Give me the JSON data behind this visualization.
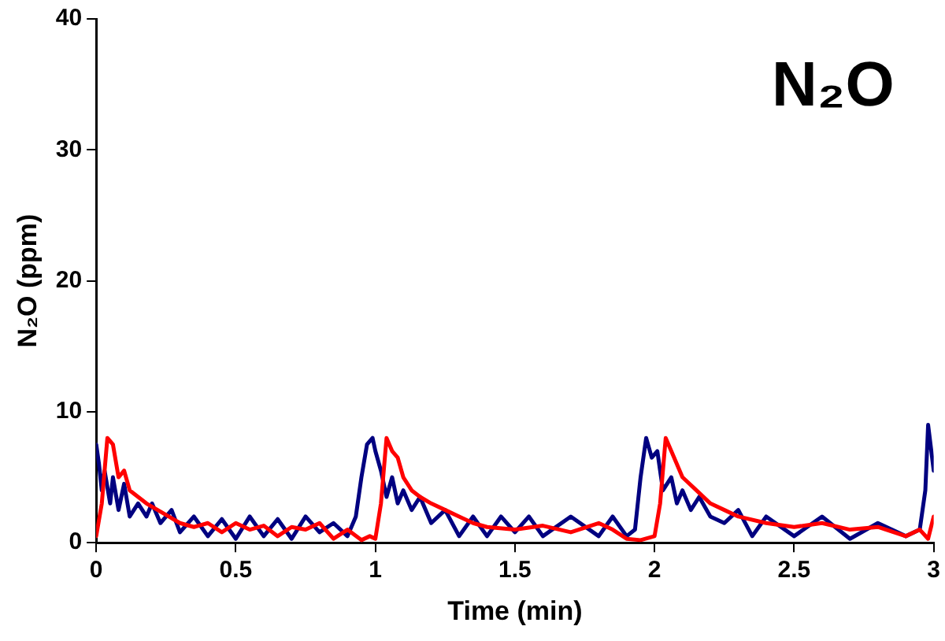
{
  "chart_data": {
    "type": "line",
    "xlabel": "Time (min)",
    "ylabel": "N₂O (ppm)",
    "annotations": [
      "N₂O"
    ],
    "xlim": [
      0,
      3
    ],
    "xticks": [
      0,
      0.5,
      1,
      1.5,
      2,
      2.5,
      3
    ],
    "ylim": [
      0,
      40
    ],
    "yticks": [
      0,
      10,
      20,
      30,
      40
    ],
    "grid": false,
    "legend": false,
    "marker": "none",
    "line_style": "solid",
    "series": [
      {
        "color": "#ff0000",
        "x": [
          0,
          0.02,
          0.04,
          0.06,
          0.08,
          0.1,
          0.12,
          0.15,
          0.18,
          0.22,
          0.26,
          0.3,
          0.35,
          0.4,
          0.45,
          0.5,
          0.55,
          0.6,
          0.65,
          0.7,
          0.75,
          0.8,
          0.85,
          0.9,
          0.95,
          0.98,
          1.0,
          1.02,
          1.04,
          1.06,
          1.08,
          1.1,
          1.13,
          1.16,
          1.2,
          1.25,
          1.3,
          1.35,
          1.4,
          1.5,
          1.6,
          1.7,
          1.8,
          1.85,
          1.9,
          1.95,
          2.0,
          2.02,
          2.04,
          2.06,
          2.1,
          2.15,
          2.2,
          2.25,
          2.3,
          2.4,
          2.5,
          2.6,
          2.7,
          2.8,
          2.9,
          2.95,
          2.98,
          3.0
        ],
        "values": [
          0.5,
          3,
          8,
          7.5,
          5,
          5.5,
          4,
          3.5,
          3,
          2.5,
          2,
          1.5,
          1.2,
          1.5,
          0.8,
          1.5,
          1,
          1.3,
          0.5,
          1.2,
          1,
          1.5,
          0.3,
          1,
          0.2,
          0.5,
          0.3,
          3,
          8,
          7,
          6.5,
          5,
          4,
          3.5,
          3,
          2.5,
          2,
          1.5,
          1.2,
          1,
          1.3,
          0.8,
          1.5,
          1,
          0.3,
          0.2,
          0.5,
          3,
          8,
          7,
          5,
          4,
          3,
          2.5,
          2,
          1.5,
          1.2,
          1.5,
          1,
          1.2,
          0.5,
          1,
          0.3,
          2
        ]
      },
      {
        "color": "#000080",
        "x": [
          0,
          0.01,
          0.02,
          0.03,
          0.05,
          0.06,
          0.08,
          0.1,
          0.12,
          0.15,
          0.18,
          0.2,
          0.23,
          0.27,
          0.3,
          0.35,
          0.4,
          0.45,
          0.5,
          0.55,
          0.6,
          0.65,
          0.7,
          0.75,
          0.8,
          0.85,
          0.9,
          0.93,
          0.95,
          0.97,
          0.99,
          1.0,
          1.02,
          1.04,
          1.06,
          1.08,
          1.1,
          1.13,
          1.16,
          1.2,
          1.25,
          1.3,
          1.35,
          1.4,
          1.45,
          1.5,
          1.55,
          1.6,
          1.7,
          1.8,
          1.85,
          1.9,
          1.93,
          1.95,
          1.97,
          1.99,
          2.01,
          2.03,
          2.06,
          2.08,
          2.1,
          2.13,
          2.16,
          2.2,
          2.25,
          2.3,
          2.35,
          2.4,
          2.5,
          2.6,
          2.7,
          2.8,
          2.9,
          2.95,
          2.97,
          2.98,
          3.0
        ],
        "values": [
          7.5,
          6,
          4,
          5.5,
          3,
          5,
          2.5,
          4.5,
          2,
          3,
          2,
          3,
          1.5,
          2.5,
          0.8,
          2,
          0.5,
          1.8,
          0.3,
          2,
          0.5,
          1.8,
          0.3,
          2,
          0.8,
          1.5,
          0.5,
          2,
          5,
          7.5,
          8,
          7,
          5.5,
          3.5,
          5,
          3,
          4,
          2.5,
          3.5,
          1.5,
          2.5,
          0.5,
          2,
          0.5,
          2,
          0.8,
          2,
          0.5,
          2,
          0.5,
          2,
          0.5,
          1,
          5,
          8,
          6.5,
          7,
          4,
          5,
          3,
          4,
          2.5,
          3.5,
          2,
          1.5,
          2.5,
          0.5,
          2,
          0.5,
          2,
          0.3,
          1.5,
          0.5,
          1,
          4,
          9,
          5.5
        ]
      }
    ]
  }
}
